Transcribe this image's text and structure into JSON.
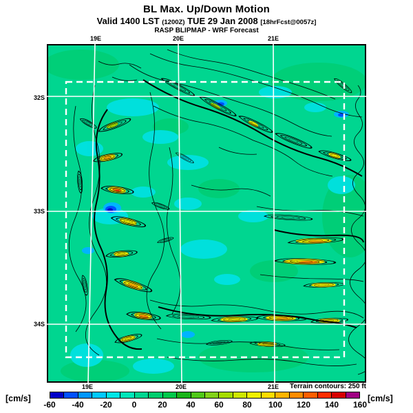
{
  "header": {
    "title": "BL Max. Up/Down Motion",
    "valid_main1": "Valid 1400 LST ",
    "valid_paren": "(1200Z)",
    "valid_main2": " TUE 29 Jan 2008 ",
    "valid_bracket": "[18hrFcst@0057z]",
    "model_line": "RASP BLIPMAP - WRF Forecast"
  },
  "map": {
    "top_labels": [
      "19E",
      "20E",
      "21E"
    ],
    "bottom_labels": [
      "19E",
      "20E",
      "21E"
    ],
    "left_labels": [
      "32S",
      "33S",
      "34S"
    ],
    "terrain_note": "Terrain contours: 250 ft"
  },
  "colorbar": {
    "unit_left": "[cm/s]",
    "unit_right": "[cm/s]",
    "ticks": [
      "-60",
      "-40",
      "-20",
      "0",
      "20",
      "40",
      "60",
      "80",
      "100",
      "120",
      "140",
      "160"
    ],
    "colors": [
      "#0000c8",
      "#0050ff",
      "#0096ff",
      "#00c8ff",
      "#00e6e6",
      "#00e6b9",
      "#00d690",
      "#00cd6e",
      "#00c84b",
      "#19b419",
      "#50c819",
      "#82d219",
      "#a5dc00",
      "#cde600",
      "#f0f000",
      "#ffdc00",
      "#ffb400",
      "#ff8c00",
      "#ff5f00",
      "#ff2d00",
      "#d70000",
      "#a00082"
    ]
  },
  "chart_data": {
    "type": "heatmap",
    "title": "BL Max. Up/Down Motion",
    "subtitle": "Valid 1400 LST (1200Z) TUE 29 Jan 2008 [18hrFcst@0057z]",
    "source_line": "RASP BLIPMAP - WRF Forecast",
    "x_tick_labels": [
      "19E",
      "20E",
      "21E"
    ],
    "y_tick_labels": [
      "32S",
      "33S",
      "34S"
    ],
    "units": "cm/s",
    "colorbar_range": [
      -60,
      160
    ],
    "colorbar_step_per_color": 10,
    "colorbar_tick_labels": [
      -60,
      -40,
      -20,
      0,
      20,
      40,
      60,
      80,
      100,
      120,
      140,
      160
    ],
    "colorbar_colors": [
      "#0000c8",
      "#0050ff",
      "#0096ff",
      "#00c8ff",
      "#00e6e6",
      "#00e6b9",
      "#00d690",
      "#00cd6e",
      "#00c84b",
      "#19b419",
      "#50c819",
      "#82d219",
      "#a5dc00",
      "#cde600",
      "#f0f000",
      "#ffdc00",
      "#ffb400",
      "#ff8c00",
      "#ff5f00",
      "#ff2d00",
      "#d70000",
      "#a00082"
    ],
    "overlay": "Terrain contours: 250 ft",
    "grid": "white solid lat/lon lines at 19E,20E,21E and 32S,33S,34S; white dashed inner model-domain rectangle",
    "dominant_field_value_cms": [
      0,
      20
    ],
    "notable_features": "Strong lift bands (60-140 cm/s, yellow/orange) along the N-S mountain chain in the west, along a NW-SE ridge in the upper right, in east-central bands near 33S-34S and along a bottom band near 34S; sink pockets (-60 to -20 cm/s, blue/cyan) west-center and along the upper diagonal ridge."
  }
}
